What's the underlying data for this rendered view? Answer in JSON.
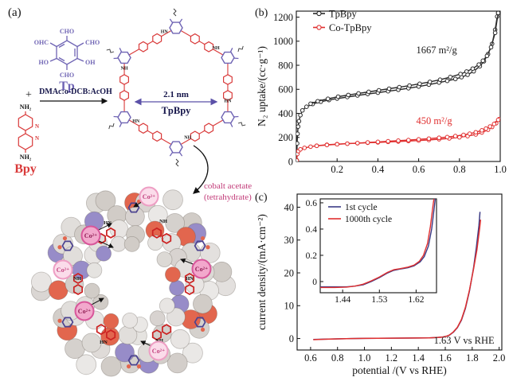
{
  "figure": {
    "panel_a": {
      "label": "(a)",
      "tp": {
        "name": "Tp",
        "substituents": {
          "top": "CHO",
          "upper_left": "OHC",
          "upper_right": "CHO",
          "left": "HO",
          "right": "OH",
          "bottom": "CHO"
        }
      },
      "plus": "+",
      "reaction_conditions": "DMAc:o-DCB:AcOH",
      "bpy": {
        "name": "Bpy",
        "amine_top": "NH₂",
        "amine_bottom": "NH₂",
        "n_label": "N"
      },
      "pore_size": "2.1 nm",
      "product_name": "TpBpy",
      "cobalt_step_line1": "cobalt acetate",
      "cobalt_step_line2": "(tetrahydrate)",
      "cobalt_ion": "Co²⁺",
      "hn_label": "HN",
      "nh_label": "NH"
    },
    "colors": {
      "tp_purple": "#6f64b4",
      "bpy_red": "#d93a3a",
      "cobalt_magenta": "#c23a78",
      "scheme_navy": "#15154a",
      "curve_black": "#2a2a2a",
      "curve_red": "#e02f2f",
      "curve_navy": "#3b3b85"
    }
  },
  "chart_data": [
    {
      "type": "line",
      "panel_label": "(b)",
      "title": "",
      "xlabel": "",
      "ylabel": "N₂ uptake/(cc·g⁻¹)",
      "xlim": [
        0,
        1.0
      ],
      "ylim": [
        0,
        1250
      ],
      "grid": false,
      "legend_position": "top-left",
      "xticks": [
        [
          0.2,
          "0.2"
        ],
        [
          0.4,
          "0.4"
        ],
        [
          0.6,
          "0.6"
        ],
        [
          0.8,
          "0.8"
        ],
        [
          1.0,
          "1.0"
        ]
      ],
      "yticks": [
        [
          0,
          "0"
        ],
        [
          200,
          "200"
        ],
        [
          400,
          "400"
        ],
        [
          600,
          "600"
        ],
        [
          800,
          "800"
        ],
        [
          1000,
          "1000"
        ],
        [
          1200,
          "1200"
        ]
      ],
      "legend": [
        {
          "label": "TpBpy",
          "color": "#2a2a2a"
        },
        {
          "label": "Co-TpBpy",
          "color": "#e02f2f"
        }
      ],
      "annotations": [
        {
          "x": 0.688,
          "y": 900,
          "text": "1667 m²/g",
          "color": "#1a1a1a"
        },
        {
          "x": 0.676,
          "y": 310,
          "text": "450 m²/g",
          "color": "#e02f2f"
        }
      ],
      "series": [
        {
          "name": "TpBpy adsorption",
          "color": "#2a2a2a",
          "marker": "circle",
          "points": [
            [
              0.002,
              10
            ],
            [
              0.004,
              150
            ],
            [
              0.006,
              230
            ],
            [
              0.009,
              290
            ],
            [
              0.013,
              335
            ],
            [
              0.02,
              385
            ],
            [
              0.03,
              425
            ],
            [
              0.05,
              455
            ],
            [
              0.08,
              478
            ],
            [
              0.12,
              497
            ],
            [
              0.16,
              511
            ],
            [
              0.2,
              523
            ],
            [
              0.25,
              536
            ],
            [
              0.3,
              549
            ],
            [
              0.35,
              561
            ],
            [
              0.4,
              572
            ],
            [
              0.45,
              584
            ],
            [
              0.5,
              596
            ],
            [
              0.55,
              609
            ],
            [
              0.6,
              623
            ],
            [
              0.65,
              639
            ],
            [
              0.7,
              656
            ],
            [
              0.74,
              670
            ],
            [
              0.78,
              686
            ],
            [
              0.81,
              701
            ],
            [
              0.84,
              721
            ],
            [
              0.87,
              750
            ],
            [
              0.9,
              792
            ],
            [
              0.92,
              833
            ],
            [
              0.94,
              893
            ],
            [
              0.96,
              978
            ],
            [
              0.975,
              1095
            ],
            [
              0.985,
              1205
            ],
            [
              0.99,
              1235
            ]
          ]
        },
        {
          "name": "TpBpy desorption",
          "color": "#2a2a2a",
          "marker": "circle",
          "points": [
            [
              0.99,
              1235
            ],
            [
              0.975,
              1070
            ],
            [
              0.955,
              950
            ],
            [
              0.935,
              878
            ],
            [
              0.915,
              838
            ],
            [
              0.895,
              806
            ],
            [
              0.865,
              772
            ],
            [
              0.835,
              748
            ],
            [
              0.805,
              727
            ],
            [
              0.755,
              702
            ],
            [
              0.705,
              680
            ],
            [
              0.655,
              662
            ],
            [
              0.605,
              646
            ],
            [
              0.555,
              631
            ],
            [
              0.505,
              618
            ],
            [
              0.455,
              605
            ],
            [
              0.405,
              592
            ],
            [
              0.355,
              579
            ],
            [
              0.305,
              566
            ],
            [
              0.255,
              553
            ],
            [
              0.205,
              539
            ],
            [
              0.155,
              521
            ],
            [
              0.105,
              501
            ],
            [
              0.07,
              480
            ]
          ]
        },
        {
          "name": "Co-TpBpy adsorption",
          "color": "#e02f2f",
          "marker": "circle",
          "points": [
            [
              0.002,
              8
            ],
            [
              0.005,
              62
            ],
            [
              0.01,
              86
            ],
            [
              0.02,
              101
            ],
            [
              0.04,
              113
            ],
            [
              0.07,
              123
            ],
            [
              0.1,
              131
            ],
            [
              0.15,
              139
            ],
            [
              0.2,
              144
            ],
            [
              0.25,
              148
            ],
            [
              0.3,
              152
            ],
            [
              0.35,
              156
            ],
            [
              0.4,
              159
            ],
            [
              0.45,
              163
            ],
            [
              0.5,
              166
            ],
            [
              0.55,
              170
            ],
            [
              0.6,
              174
            ],
            [
              0.65,
              179
            ],
            [
              0.7,
              185
            ],
            [
              0.75,
              192
            ],
            [
              0.8,
              201
            ],
            [
              0.84,
              211
            ],
            [
              0.88,
              225
            ],
            [
              0.91,
              241
            ],
            [
              0.94,
              264
            ],
            [
              0.96,
              287
            ],
            [
              0.98,
              318
            ],
            [
              0.995,
              352
            ]
          ]
        },
        {
          "name": "Co-TpBpy desorption",
          "color": "#e02f2f",
          "marker": "circle",
          "points": [
            [
              0.99,
              346
            ],
            [
              0.97,
              312
            ],
            [
              0.95,
              291
            ],
            [
              0.93,
              273
            ],
            [
              0.91,
              259
            ],
            [
              0.88,
              243
            ],
            [
              0.85,
              231
            ],
            [
              0.82,
              221
            ],
            [
              0.78,
              211
            ],
            [
              0.74,
              203
            ],
            [
              0.7,
              197
            ],
            [
              0.65,
              190
            ],
            [
              0.6,
              184
            ],
            [
              0.55,
              178
            ],
            [
              0.5,
              173
            ],
            [
              0.45,
              168
            ],
            [
              0.4,
              163
            ],
            [
              0.35,
              158
            ],
            [
              0.3,
              153
            ],
            [
              0.25,
              148
            ],
            [
              0.2,
              143
            ],
            [
              0.15,
              137
            ],
            [
              0.1,
              130
            ]
          ]
        }
      ]
    },
    {
      "type": "line",
      "panel_label": "(c)",
      "title": "",
      "xlabel": "potential /(V vs RHE)",
      "ylabel": "current density/(mA·cm⁻²)",
      "xlim": [
        0.5,
        2.02
      ],
      "ylim": [
        -3.5,
        44
      ],
      "grid": false,
      "xticks": [
        [
          0.6,
          "0.6"
        ],
        [
          0.8,
          "0.8"
        ],
        [
          1.0,
          "1.0"
        ],
        [
          1.2,
          "1.2"
        ],
        [
          1.4,
          "1.4"
        ],
        [
          1.6,
          "1.6"
        ],
        [
          1.8,
          "1.8"
        ],
        [
          2.0,
          "2.0"
        ]
      ],
      "yticks": [
        [
          0,
          "0"
        ],
        [
          10,
          "10"
        ],
        [
          20,
          "20"
        ],
        [
          30,
          "30"
        ],
        [
          40,
          "40"
        ]
      ],
      "annotations": [
        {
          "x": 1.74,
          "y": -1.6,
          "text": "1.63 V vs RHE",
          "color": "#1a1a1a"
        }
      ],
      "series": [
        {
          "name": "1st cycle",
          "color": "#3b3b85",
          "points": [
            [
              0.62,
              -0.3
            ],
            [
              0.7,
              -0.2
            ],
            [
              0.8,
              -0.1
            ],
            [
              0.9,
              0
            ],
            [
              1.0,
              0.05
            ],
            [
              1.1,
              0.08
            ],
            [
              1.2,
              0.1
            ],
            [
              1.3,
              0.13
            ],
            [
              1.4,
              0.16
            ],
            [
              1.48,
              0.22
            ],
            [
              1.54,
              0.32
            ],
            [
              1.58,
              0.46
            ],
            [
              1.61,
              0.7
            ],
            [
              1.63,
              1.0
            ],
            [
              1.66,
              1.9
            ],
            [
              1.69,
              3.3
            ],
            [
              1.72,
              5.6
            ],
            [
              1.75,
              9.2
            ],
            [
              1.78,
              14.5
            ],
            [
              1.81,
              21.5
            ],
            [
              1.83,
              27.5
            ],
            [
              1.85,
              34.5
            ],
            [
              1.858,
              38.6
            ]
          ]
        },
        {
          "name": "1000th cycle",
          "color": "#e02f2f",
          "points": [
            [
              0.62,
              -0.35
            ],
            [
              0.7,
              -0.22
            ],
            [
              0.8,
              -0.1
            ],
            [
              0.9,
              0
            ],
            [
              1.0,
              0.05
            ],
            [
              1.1,
              0.08
            ],
            [
              1.2,
              0.1
            ],
            [
              1.3,
              0.13
            ],
            [
              1.4,
              0.16
            ],
            [
              1.48,
              0.22
            ],
            [
              1.54,
              0.32
            ],
            [
              1.58,
              0.46
            ],
            [
              1.61,
              0.72
            ],
            [
              1.63,
              1.05
            ],
            [
              1.66,
              2.0
            ],
            [
              1.69,
              3.4
            ],
            [
              1.72,
              5.8
            ],
            [
              1.75,
              9.5
            ],
            [
              1.78,
              14.8
            ],
            [
              1.81,
              21.2
            ],
            [
              1.835,
              27
            ],
            [
              1.855,
              33.5
            ],
            [
              1.862,
              36.2
            ]
          ]
        }
      ],
      "inset": {
        "xlim": [
          1.385,
          1.67
        ],
        "ylim": [
          -0.085,
          0.63
        ],
        "xticks": [
          [
            1.44,
            "1.44"
          ],
          [
            1.53,
            "1.53"
          ],
          [
            1.62,
            "1.62"
          ]
        ],
        "yticks": [
          [
            0,
            "0"
          ],
          [
            0.2,
            "0.2"
          ],
          [
            0.4,
            "0.4"
          ],
          [
            0.6,
            "0.6"
          ]
        ],
        "legend": [
          {
            "label": "1st cycle",
            "color": "#3b3b85"
          },
          {
            "label": "1000th cycle",
            "color": "#e02f2f"
          }
        ],
        "series": [
          {
            "name": "1st cycle",
            "color": "#3b3b85",
            "points": [
              [
                1.385,
                -0.04
              ],
              [
                1.42,
                -0.04
              ],
              [
                1.45,
                -0.04
              ],
              [
                1.47,
                -0.035
              ],
              [
                1.49,
                -0.025
              ],
              [
                1.51,
                0.0
              ],
              [
                1.53,
                0.03
              ],
              [
                1.55,
                0.065
              ],
              [
                1.565,
                0.085
              ],
              [
                1.58,
                0.095
              ],
              [
                1.6,
                0.105
              ],
              [
                1.615,
                0.12
              ],
              [
                1.63,
                0.15
              ],
              [
                1.64,
                0.19
              ],
              [
                1.65,
                0.27
              ],
              [
                1.658,
                0.4
              ],
              [
                1.664,
                0.55
              ],
              [
                1.668,
                0.66
              ]
            ]
          },
          {
            "name": "1000th cycle",
            "color": "#e02f2f",
            "points": [
              [
                1.385,
                -0.045
              ],
              [
                1.42,
                -0.045
              ],
              [
                1.45,
                -0.042
              ],
              [
                1.47,
                -0.035
              ],
              [
                1.49,
                -0.02
              ],
              [
                1.51,
                0.005
              ],
              [
                1.53,
                0.035
              ],
              [
                1.55,
                0.07
              ],
              [
                1.565,
                0.09
              ],
              [
                1.58,
                0.098
              ],
              [
                1.6,
                0.11
              ],
              [
                1.615,
                0.125
              ],
              [
                1.628,
                0.155
              ],
              [
                1.638,
                0.2
              ],
              [
                1.648,
                0.29
              ],
              [
                1.655,
                0.42
              ],
              [
                1.661,
                0.57
              ],
              [
                1.665,
                0.66
              ]
            ]
          }
        ]
      }
    }
  ]
}
